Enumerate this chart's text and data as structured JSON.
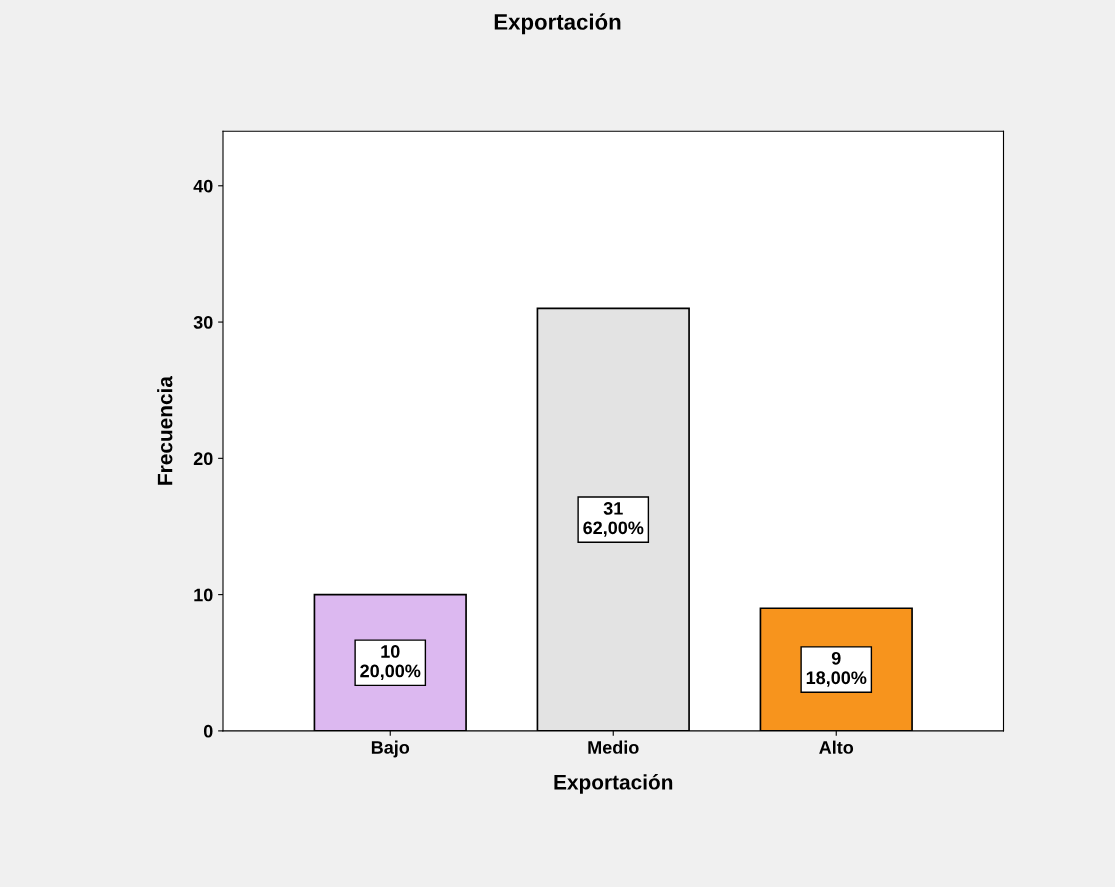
{
  "chart_data": {
    "type": "bar",
    "title": "Exportación",
    "xlabel": "Exportación",
    "ylabel": "Frecuencia",
    "categories": [
      "Bajo",
      "Medio",
      "Alto"
    ],
    "values": [
      10,
      31,
      9
    ],
    "colors": [
      "#dcb8f0",
      "#e3e3e3",
      "#f7941d"
    ],
    "value_labels": [
      "10\n20,00%",
      "31\n62,00%",
      "9\n18,00%"
    ],
    "ylim": [
      0,
      44
    ],
    "yticks": [
      0,
      10,
      20,
      30,
      40
    ],
    "grid": false
  }
}
